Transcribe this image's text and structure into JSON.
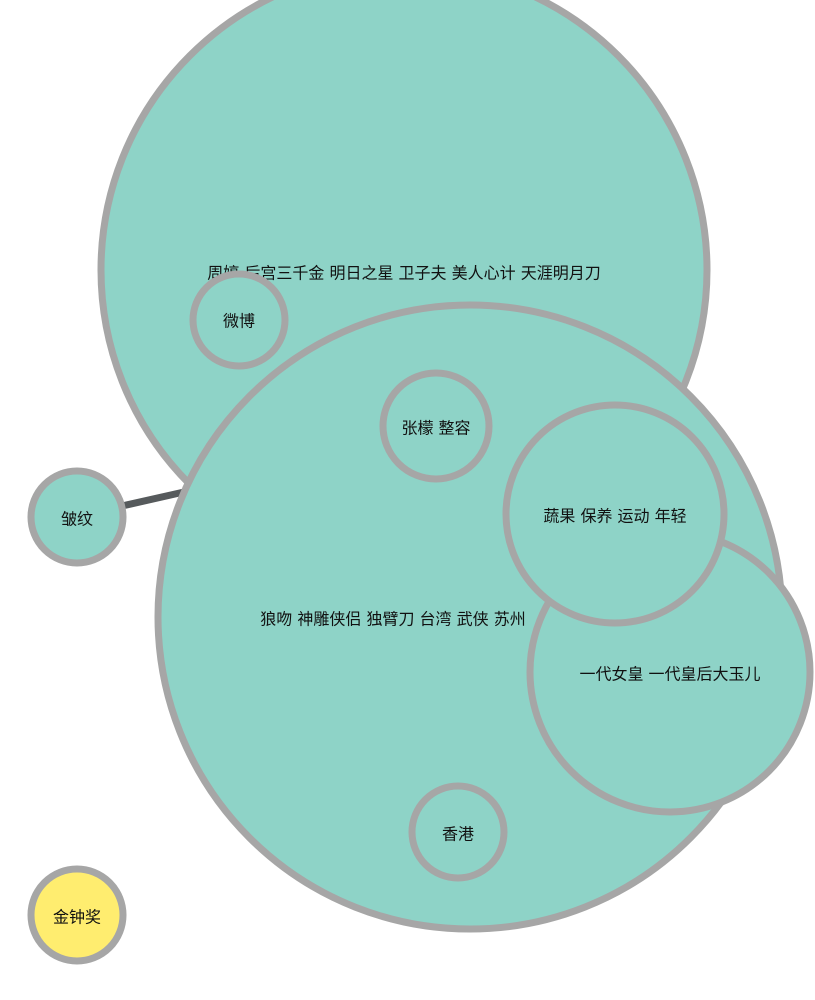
{
  "colors": {
    "bubble_fill": "#8ed3c7",
    "bubble_stroke": "#a6a6a6",
    "highlight_fill": "#ffed6f",
    "link": "#565a5c"
  },
  "nodes": [
    {
      "id": "n1",
      "label": "周婷 后宫三千金 明日之星 卫子夫 美人心计 天涯明月刀",
      "kind": "normal"
    },
    {
      "id": "n2",
      "label": "狼吻 神雕侠侣 独臂刀 台湾 武侠 苏州",
      "kind": "normal"
    },
    {
      "id": "n3",
      "label": "一代女皇 一代皇后大玉儿",
      "kind": "normal"
    },
    {
      "id": "n4",
      "label": "蔬果 保养 运动 年轻",
      "kind": "normal"
    },
    {
      "id": "n5",
      "label": "张檬 整容",
      "kind": "normal"
    },
    {
      "id": "n6",
      "label": "微博",
      "kind": "normal"
    },
    {
      "id": "n7",
      "label": "香港",
      "kind": "normal"
    },
    {
      "id": "n8",
      "label": "皱纹",
      "kind": "normal"
    },
    {
      "id": "n9",
      "label": "金钟奖",
      "kind": "highlight"
    }
  ],
  "links": [
    {
      "source": "n8",
      "target": "n2"
    }
  ]
}
